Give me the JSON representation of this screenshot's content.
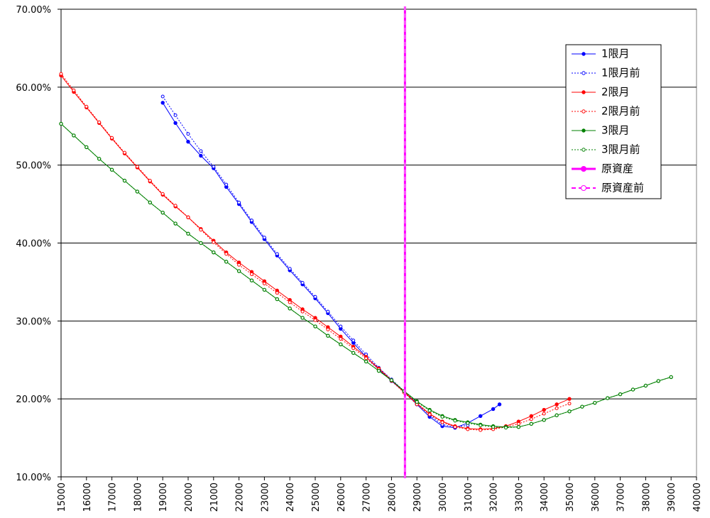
{
  "chart_data": {
    "type": "line",
    "xlim": [
      15000,
      40000
    ],
    "xticks": [
      15000,
      16000,
      17000,
      18000,
      19000,
      20000,
      21000,
      22000,
      23000,
      24000,
      25000,
      26000,
      27000,
      28000,
      29000,
      30000,
      31000,
      32000,
      33000,
      34000,
      35000,
      36000,
      37000,
      38000,
      39000,
      40000
    ],
    "ylim": [
      10,
      70
    ],
    "yticks": [
      {
        "value": 10,
        "label": "10.00%"
      },
      {
        "value": 20,
        "label": "20.00%"
      },
      {
        "value": 30,
        "label": "30.00%"
      },
      {
        "value": 40,
        "label": "40.00%"
      },
      {
        "value": 50,
        "label": "50.00%"
      },
      {
        "value": 60,
        "label": "60.00%"
      },
      {
        "value": 70,
        "label": "70.00%"
      }
    ],
    "grid": true,
    "legend": "upper-right",
    "series": [
      {
        "name": "1限月",
        "color": "#0000ff",
        "style": "solid",
        "marker": "filled",
        "x": [
          19000,
          19500,
          20000,
          20500,
          21000,
          21500,
          22000,
          22500,
          23000,
          23500,
          24000,
          24500,
          25000,
          25500,
          26000,
          26500,
          27000,
          27500,
          28000,
          28500,
          29000,
          29500,
          30000,
          30500,
          31000,
          31500,
          32000,
          32250
        ],
        "values": [
          58.0,
          55.4,
          53.0,
          51.2,
          49.6,
          47.2,
          45.0,
          42.7,
          40.5,
          38.4,
          36.5,
          34.7,
          32.9,
          31.0,
          29.0,
          27.2,
          25.4,
          23.8,
          22.3,
          20.9,
          19.3,
          17.7,
          16.5,
          16.3,
          16.9,
          17.8,
          18.7,
          19.3
        ]
      },
      {
        "name": "1限月前",
        "color": "#0000ff",
        "style": "dotted",
        "marker": "hollow",
        "x": [
          19000,
          19500,
          20000,
          20500,
          21000,
          21500,
          22000,
          22500,
          23000,
          23500,
          24000,
          24500,
          25000,
          25500,
          26000,
          26500,
          27000,
          27500,
          28000,
          28500,
          29000,
          29500,
          30000,
          30500,
          31000
        ],
        "values": [
          58.8,
          56.4,
          54.0,
          51.8,
          49.8,
          47.5,
          45.2,
          42.9,
          40.7,
          38.6,
          36.7,
          34.9,
          33.1,
          31.2,
          29.3,
          27.5,
          25.7,
          24.0,
          22.5,
          21.0,
          19.5,
          17.9,
          16.7,
          16.4,
          16.6
        ]
      },
      {
        "name": "2限月",
        "color": "#ff0000",
        "style": "solid",
        "marker": "filled",
        "x": [
          15000,
          15500,
          16000,
          16500,
          17000,
          17500,
          18000,
          18500,
          19000,
          19500,
          20000,
          20500,
          21000,
          21500,
          22000,
          22500,
          23000,
          23500,
          24000,
          24500,
          25000,
          25500,
          26000,
          26500,
          27000,
          27500,
          28000,
          28500,
          29000,
          29500,
          30000,
          30500,
          31000,
          31500,
          32000,
          32500,
          33000,
          33500,
          34000,
          34500,
          35000
        ],
        "values": [
          61.5,
          59.4,
          57.4,
          55.4,
          53.4,
          51.5,
          49.7,
          47.9,
          46.2,
          44.7,
          43.3,
          41.8,
          40.3,
          38.8,
          37.5,
          36.3,
          35.1,
          33.9,
          32.7,
          31.5,
          30.4,
          29.2,
          28.0,
          26.7,
          25.4,
          23.9,
          22.4,
          20.9,
          19.4,
          18.1,
          17.1,
          16.5,
          16.2,
          16.1,
          16.2,
          16.5,
          17.1,
          17.8,
          18.6,
          19.3,
          20.0
        ]
      },
      {
        "name": "2限月前",
        "color": "#ff0000",
        "style": "dotted",
        "marker": "hollow",
        "x": [
          15000,
          15500,
          16000,
          16500,
          17000,
          17500,
          18000,
          18500,
          19000,
          19500,
          20000,
          20500,
          21000,
          21500,
          22000,
          22500,
          23000,
          23500,
          24000,
          24500,
          25000,
          25500,
          26000,
          26500,
          27000,
          27500,
          28000,
          28500,
          29000,
          29500,
          30000,
          30500,
          31000,
          31500,
          32000,
          32500,
          33000,
          33500,
          34000,
          34500,
          35000
        ],
        "values": [
          61.7,
          59.6,
          57.5,
          55.5,
          53.5,
          51.6,
          49.8,
          48.0,
          46.3,
          44.8,
          43.3,
          41.7,
          40.1,
          38.6,
          37.2,
          36.0,
          34.8,
          33.6,
          32.4,
          31.2,
          30.1,
          28.9,
          27.7,
          26.5,
          25.2,
          23.8,
          22.3,
          20.8,
          19.3,
          18.0,
          17.0,
          16.4,
          16.1,
          16.0,
          16.1,
          16.4,
          16.8,
          17.4,
          18.1,
          18.8,
          19.4
        ]
      },
      {
        "name": "3限月",
        "color": "#008000",
        "style": "solid",
        "marker": "filled",
        "x": [
          15000,
          15500,
          16000,
          16500,
          17000,
          17500,
          18000,
          18500,
          19000,
          19500,
          20000,
          20500,
          21000,
          21500,
          22000,
          22500,
          23000,
          23500,
          24000,
          24500,
          25000,
          25500,
          26000,
          26500,
          27000,
          27500,
          28000,
          28500,
          29000,
          29500,
          30000,
          30500,
          31000,
          31500,
          32000,
          32500,
          33000,
          33500,
          34000,
          34500,
          35000,
          35500,
          36000,
          36500,
          37000,
          37500,
          38000,
          38500,
          39000
        ],
        "values": [
          55.3,
          53.8,
          52.3,
          50.8,
          49.4,
          48.0,
          46.6,
          45.2,
          43.9,
          42.5,
          41.2,
          40.0,
          38.8,
          37.6,
          36.4,
          35.2,
          34.0,
          32.8,
          31.6,
          30.4,
          29.3,
          28.1,
          27.0,
          25.9,
          24.8,
          23.6,
          22.4,
          21.0,
          19.7,
          18.6,
          17.8,
          17.3,
          17.0,
          16.7,
          16.5,
          16.4,
          16.4,
          16.8,
          17.3,
          17.9,
          18.4,
          19.0,
          19.5,
          20.1,
          20.6,
          21.2,
          21.7,
          22.3,
          22.8
        ]
      },
      {
        "name": "3限月前",
        "color": "#008000",
        "style": "dotted",
        "marker": "hollow",
        "x": [
          15000,
          15500,
          16000,
          16500,
          17000,
          17500,
          18000,
          18500,
          19000,
          19500,
          20000,
          20500,
          21000,
          21500,
          22000,
          22500,
          23000,
          23500,
          24000,
          24500,
          25000,
          25500,
          26000,
          26500,
          27000,
          27500,
          28000,
          28500,
          29000,
          29500,
          30000,
          30500,
          31000,
          31500,
          32000,
          32500,
          33000,
          33500,
          34000,
          34500,
          35000,
          35500,
          36000,
          36500,
          37000,
          37500,
          38000,
          38500,
          39000
        ],
        "values": [
          55.3,
          53.8,
          52.3,
          50.8,
          49.4,
          48.0,
          46.6,
          45.2,
          43.9,
          42.5,
          41.2,
          40.0,
          38.8,
          37.6,
          36.4,
          35.2,
          34.0,
          32.8,
          31.6,
          30.4,
          29.3,
          28.1,
          27.0,
          25.9,
          24.8,
          23.6,
          22.4,
          21.0,
          19.6,
          18.5,
          17.7,
          17.2,
          16.9,
          16.6,
          16.4,
          16.3,
          16.4,
          16.8,
          17.3,
          17.9,
          18.4,
          19.0,
          19.5,
          20.1,
          20.6,
          21.2,
          21.7,
          22.3,
          22.8
        ]
      },
      {
        "name": "原資産",
        "color": "#ff00ff",
        "style": "vline-solid",
        "marker": "filled",
        "x": 28530
      },
      {
        "name": "原資産前",
        "color": "#ff00ff",
        "style": "vline-dashed",
        "marker": "hollow",
        "x": 28530
      }
    ]
  }
}
